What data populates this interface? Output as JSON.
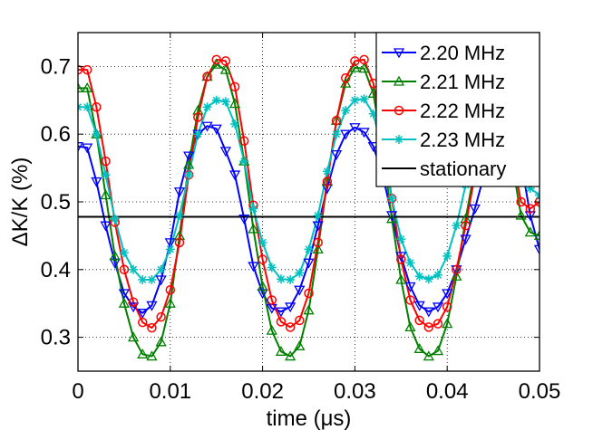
{
  "chart_data": {
    "type": "line",
    "title": "",
    "xlabel": "time (μs)",
    "ylabel": "ΔK/K (%)",
    "xlim": [
      0,
      0.05
    ],
    "ylim": [
      0.25,
      0.75
    ],
    "grid": true,
    "legend_position": "top-right",
    "x_ticks": [
      0,
      0.01,
      0.02,
      0.03,
      0.04,
      0.05
    ],
    "x_tick_labels": [
      "0",
      "0.01",
      "0.02",
      "0.03",
      "0.04",
      "0.05"
    ],
    "y_ticks": [
      0.3,
      0.4,
      0.5,
      0.6,
      0.7
    ],
    "y_tick_labels": [
      "0.3",
      "0.4",
      "0.5",
      "0.6",
      "0.7"
    ],
    "x": [
      0,
      0.001,
      0.002,
      0.003,
      0.004,
      0.005,
      0.006,
      0.007,
      0.008,
      0.009,
      0.01,
      0.011,
      0.012,
      0.013,
      0.014,
      0.015,
      0.016,
      0.017,
      0.018,
      0.019,
      0.02,
      0.021,
      0.022,
      0.023,
      0.024,
      0.025,
      0.026,
      0.027,
      0.028,
      0.029,
      0.03,
      0.031,
      0.032,
      0.033,
      0.034,
      0.035,
      0.036,
      0.037,
      0.038,
      0.039,
      0.04,
      0.041,
      0.042,
      0.043,
      0.044,
      0.045,
      0.046,
      0.047,
      0.048,
      0.049,
      0.05
    ],
    "series": [
      {
        "name": "2.20 MHz",
        "color": "#0000ff",
        "marker": "triangle-down",
        "values": [
          0.582,
          0.58,
          0.53,
          0.465,
          0.41,
          0.365,
          0.345,
          0.336,
          0.347,
          0.385,
          0.44,
          0.515,
          0.568,
          0.6,
          0.612,
          0.608,
          0.575,
          0.54,
          0.475,
          0.405,
          0.365,
          0.343,
          0.338,
          0.345,
          0.37,
          0.41,
          0.465,
          0.52,
          0.57,
          0.6,
          0.61,
          0.603,
          0.582,
          0.54,
          0.48,
          0.42,
          0.375,
          0.347,
          0.338,
          0.345,
          0.365,
          0.4,
          0.445,
          0.49,
          0.54,
          0.575,
          0.6,
          0.59,
          0.56,
          0.48,
          0.43
        ]
      },
      {
        "name": "2.21 MHz",
        "color": "#008000",
        "marker": "triangle-up",
        "values": [
          0.668,
          0.668,
          0.6,
          0.51,
          0.42,
          0.35,
          0.3,
          0.275,
          0.272,
          0.293,
          0.35,
          0.45,
          0.555,
          0.635,
          0.685,
          0.703,
          0.695,
          0.645,
          0.56,
          0.46,
          0.375,
          0.31,
          0.279,
          0.272,
          0.287,
          0.34,
          0.43,
          0.53,
          0.62,
          0.675,
          0.698,
          0.697,
          0.66,
          0.58,
          0.475,
          0.385,
          0.315,
          0.283,
          0.272,
          0.28,
          0.32,
          0.39,
          0.475,
          0.55,
          0.6,
          0.62,
          0.61,
          0.56,
          0.48,
          0.455,
          0.45
        ]
      },
      {
        "name": "2.22 MHz",
        "color": "#ff0000",
        "marker": "circle",
        "values": [
          0.695,
          0.695,
          0.64,
          0.56,
          0.47,
          0.4,
          0.352,
          0.322,
          0.314,
          0.33,
          0.37,
          0.44,
          0.54,
          0.625,
          0.685,
          0.71,
          0.708,
          0.67,
          0.59,
          0.495,
          0.415,
          0.355,
          0.323,
          0.315,
          0.325,
          0.365,
          0.44,
          0.53,
          0.62,
          0.683,
          0.708,
          0.71,
          0.675,
          0.6,
          0.505,
          0.415,
          0.355,
          0.325,
          0.315,
          0.32,
          0.345,
          0.4,
          0.465,
          0.54,
          0.6,
          0.63,
          0.62,
          0.57,
          0.5,
          0.49,
          0.5
        ]
      },
      {
        "name": "2.23 MHz",
        "color": "#00c0c0",
        "marker": "asterisk",
        "values": [
          0.64,
          0.64,
          0.6,
          0.54,
          0.475,
          0.425,
          0.4,
          0.385,
          0.385,
          0.4,
          0.43,
          0.48,
          0.54,
          0.6,
          0.64,
          0.65,
          0.648,
          0.615,
          0.56,
          0.49,
          0.44,
          0.403,
          0.386,
          0.385,
          0.395,
          0.43,
          0.48,
          0.545,
          0.6,
          0.635,
          0.65,
          0.652,
          0.63,
          0.575,
          0.505,
          0.445,
          0.41,
          0.39,
          0.386,
          0.392,
          0.42,
          0.465,
          0.525,
          0.58,
          0.62,
          0.64,
          0.635,
          0.6,
          0.545,
          0.52,
          0.51
        ]
      },
      {
        "name": "stationary",
        "color": "#000000",
        "marker": "none",
        "values": [
          0.478,
          0.478,
          0.478,
          0.478,
          0.478,
          0.478,
          0.478,
          0.478,
          0.478,
          0.478,
          0.478,
          0.478,
          0.478,
          0.478,
          0.478,
          0.478,
          0.478,
          0.478,
          0.478,
          0.478,
          0.478,
          0.478,
          0.478,
          0.478,
          0.478,
          0.478,
          0.478,
          0.478,
          0.478,
          0.478,
          0.478,
          0.478,
          0.478,
          0.478,
          0.478,
          0.478,
          0.478,
          0.478,
          0.478,
          0.478,
          0.478,
          0.478,
          0.478,
          0.478,
          0.478,
          0.478,
          0.478,
          0.478,
          0.478,
          0.478,
          0.478
        ]
      }
    ]
  }
}
